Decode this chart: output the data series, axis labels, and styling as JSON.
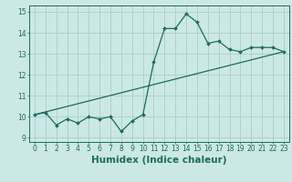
{
  "xlabel": "Humidex (Indice chaleur)",
  "ylabel": "",
  "bg_color": "#cce8e4",
  "grid_color": "#aaccca",
  "line_color": "#1a6b60",
  "xlim": [
    -0.5,
    23.5
  ],
  "ylim": [
    8.8,
    15.3
  ],
  "yticks": [
    9,
    10,
    11,
    12,
    13,
    14,
    15
  ],
  "xticks": [
    0,
    1,
    2,
    3,
    4,
    5,
    6,
    7,
    8,
    9,
    10,
    11,
    12,
    13,
    14,
    15,
    16,
    17,
    18,
    19,
    20,
    21,
    22,
    23
  ],
  "series1_x": [
    0,
    1,
    2,
    3,
    4,
    5,
    6,
    7,
    8,
    9,
    10,
    11,
    12,
    13,
    14,
    15,
    16,
    17,
    18,
    19,
    20,
    21,
    22,
    23
  ],
  "series1_y": [
    10.1,
    10.2,
    9.6,
    9.9,
    9.7,
    10.0,
    9.9,
    10.0,
    9.3,
    9.8,
    10.1,
    12.6,
    14.2,
    14.2,
    14.9,
    14.5,
    13.5,
    13.6,
    13.2,
    13.1,
    13.3,
    13.3,
    13.3,
    13.1
  ],
  "series2_x": [
    0,
    23
  ],
  "series2_y": [
    10.1,
    13.1
  ],
  "axis_fontsize": 7,
  "tick_fontsize": 5.5,
  "xlabel_fontsize": 7.5
}
